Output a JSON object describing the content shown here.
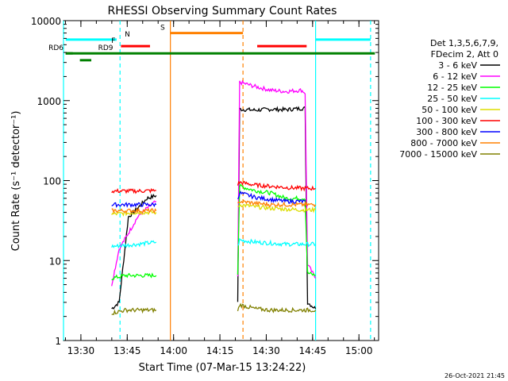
{
  "chart_data": {
    "type": "line",
    "title": "RHESSI Observing Summary Count Rates",
    "xlabel": "Start Time (07-Mar-15 13:24:22)",
    "ylabel": "Count Rate (s⁻¹ detector⁻¹)",
    "yscale": "log",
    "xlim_minutes": [
      0,
      102
    ],
    "ylim": [
      1,
      10000
    ],
    "x_ticks": [
      {
        "minute": 5.63,
        "label": "13:30"
      },
      {
        "minute": 20.63,
        "label": "13:45"
      },
      {
        "minute": 35.63,
        "label": "14:00"
      },
      {
        "minute": 50.63,
        "label": "14:15"
      },
      {
        "minute": 65.63,
        "label": "14:30"
      },
      {
        "minute": 80.63,
        "label": "14:45"
      },
      {
        "minute": 95.63,
        "label": "15:00"
      }
    ],
    "y_ticks": [
      {
        "value": 1,
        "label": "1"
      },
      {
        "value": 10,
        "label": "10"
      },
      {
        "value": 100,
        "label": "100"
      },
      {
        "value": 1000,
        "label": "1000"
      },
      {
        "value": 10000,
        "label": "10000"
      }
    ],
    "legend_header": [
      "Det 1,3,5,6,7,9,",
      "FDecim 2, Att 0"
    ],
    "legend_position": "right",
    "series": [
      {
        "name": "3 - 6 keV",
        "color": "#000000",
        "segments": [
          {
            "t": [
              15.6,
              18,
              21,
              24,
              27,
              30
            ],
            "y": [
              2.5,
              3,
              35,
              45,
              60,
              65
            ]
          },
          {
            "t": [
              56.4,
              57,
              62,
              67,
              72,
              77,
              78.2,
              79,
              81.6
            ],
            "y": [
              3,
              780,
              760,
              780,
              770,
              800,
              800,
              3,
              2.5
            ]
          }
        ]
      },
      {
        "name": "6 - 12 keV",
        "color": "#ff00ff",
        "segments": [
          {
            "t": [
              15.6,
              18,
              21,
              24,
              27,
              30
            ],
            "y": [
              5,
              14,
              22,
              35,
              45,
              55
            ]
          },
          {
            "t": [
              56.4,
              57,
              62,
              67,
              72,
              77,
              78.2,
              79,
              81.6
            ],
            "y": [
              6,
              1700,
              1500,
              1350,
              1300,
              1350,
              1250,
              9,
              6
            ]
          }
        ]
      },
      {
        "name": "12 - 25 keV",
        "color": "#00ff00",
        "segments": [
          {
            "t": [
              15.6,
              20,
              24,
              30
            ],
            "y": [
              6,
              6.5,
              6.5,
              6.5
            ]
          },
          {
            "t": [
              56.4,
              57,
              62,
              67,
              72,
              77,
              78.2,
              79,
              81.6
            ],
            "y": [
              7,
              85,
              75,
              70,
              60,
              60,
              60,
              7,
              6.5
            ]
          }
        ]
      },
      {
        "name": "25 - 50 keV",
        "color": "#00ffff",
        "segments": [
          {
            "t": [
              15.6,
              20,
              24,
              30
            ],
            "y": [
              15,
              15.5,
              16,
              17
            ]
          },
          {
            "t": [
              56.4,
              57,
              62,
              67,
              72,
              77,
              78.2,
              79,
              81.6
            ],
            "y": [
              15,
              18,
              17,
              16.5,
              16,
              16,
              16,
              16,
              16
            ]
          }
        ]
      },
      {
        "name": "50 - 100 keV",
        "color": "#dddd00",
        "segments": [
          {
            "t": [
              15.6,
              20,
              24,
              30
            ],
            "y": [
              38,
              39,
              40,
              40
            ]
          },
          {
            "t": [
              56.4,
              57,
              62,
              67,
              72,
              77,
              78.2,
              79,
              81.6
            ],
            "y": [
              45,
              50,
              47,
              45,
              44,
              43,
              43,
              43,
              43
            ]
          }
        ]
      },
      {
        "name": "100 - 300 keV",
        "color": "#ff0000",
        "segments": [
          {
            "t": [
              15.6,
              20,
              24,
              30
            ],
            "y": [
              74,
              74,
              74,
              75
            ]
          },
          {
            "t": [
              56.4,
              57,
              62,
              67,
              72,
              77,
              78.2,
              79,
              81.6
            ],
            "y": [
              90,
              95,
              88,
              85,
              82,
              80,
              80,
              80,
              80
            ]
          }
        ]
      },
      {
        "name": "300 - 800 keV",
        "color": "#0000ff",
        "segments": [
          {
            "t": [
              15.6,
              20,
              24,
              30
            ],
            "y": [
              50,
              50,
              50,
              50
            ]
          },
          {
            "t": [
              56.4,
              57,
              62,
              67,
              72,
              77,
              78.2
            ],
            "y": [
              60,
              70,
              62,
              58,
              55,
              55,
              55
            ]
          }
        ]
      },
      {
        "name": "800 - 7000 keV",
        "color": "#ff8000",
        "segments": [
          {
            "t": [
              15.6,
              20,
              24,
              30
            ],
            "y": [
              42,
              42,
              42,
              42
            ]
          },
          {
            "t": [
              56.4,
              57,
              62,
              67,
              72,
              77,
              78.2,
              79,
              81.6
            ],
            "y": [
              50,
              55,
              52,
              50,
              50,
              50,
              50,
              50,
              50
            ]
          }
        ]
      },
      {
        "name": "7000 - 15000 keV",
        "color": "#808000",
        "segments": [
          {
            "t": [
              15.6,
              20,
              24,
              30
            ],
            "y": [
              2.2,
              2.4,
              2.4,
              2.4
            ]
          },
          {
            "t": [
              56.4,
              57,
              62,
              67,
              72,
              77,
              78.2,
              79,
              81.6
            ],
            "y": [
              2.3,
              2.8,
              2.5,
              2.4,
              2.4,
              2.4,
              2.4,
              2.4,
              2.4
            ]
          }
        ]
      }
    ],
    "vertical_markers": [
      {
        "minute": 0.0,
        "color": "#00ffff",
        "style": "solid"
      },
      {
        "minute": 18.3,
        "color": "#00ffff",
        "style": "dashed"
      },
      {
        "minute": 34.6,
        "color": "#ff8000",
        "style": "solid"
      },
      {
        "minute": 58.1,
        "color": "#ff8000",
        "style": "dashed"
      },
      {
        "minute": 81.6,
        "color": "#00ffff",
        "style": "solid"
      },
      {
        "minute": 99.4,
        "color": "#00ffff",
        "style": "dashed"
      }
    ],
    "flag_bars": [
      {
        "label": "N",
        "color": "#00ffff",
        "t_start": 0.7,
        "t_end": 17.2,
        "y": 5800,
        "label_side": "right",
        "label_at": 19.8
      },
      {
        "label": "S",
        "color": "#ff8000",
        "t_start": 34.6,
        "t_end": 58.1,
        "y": 7000,
        "label_side": "left",
        "label_at": 32.8
      },
      {
        "label": "F",
        "color": "#ff0000",
        "t_start": 18.6,
        "t_end": 28.0,
        "y": 4800,
        "label_side": "left",
        "label_at": 16.8
      },
      {
        "label": "",
        "color": "#ff0000",
        "t_start": 62.7,
        "t_end": 78.7,
        "y": 4800
      },
      {
        "label": "",
        "color": "#00ffff",
        "t_start": 81.6,
        "t_end": 99.4,
        "y": 5800
      },
      {
        "label": "RD9",
        "color": "#008000",
        "t_start": 0.7,
        "t_end": 100.8,
        "y": 3900,
        "label_side": "right",
        "label_at": 11.2
      },
      {
        "label": "RD6",
        "color": "#008000",
        "t_start": 0.7,
        "t_end": 3.0,
        "y": 3900,
        "label_side": "left",
        "label_at": 0.0
      },
      {
        "label": "",
        "color": "#008000",
        "t_start": 5.3,
        "t_end": 9.0,
        "y": 3200,
        "label_side": "none"
      }
    ],
    "label_texts": {
      "rd6": "RD6"
    }
  },
  "timestamp": "26-Oct-2021 21:45"
}
